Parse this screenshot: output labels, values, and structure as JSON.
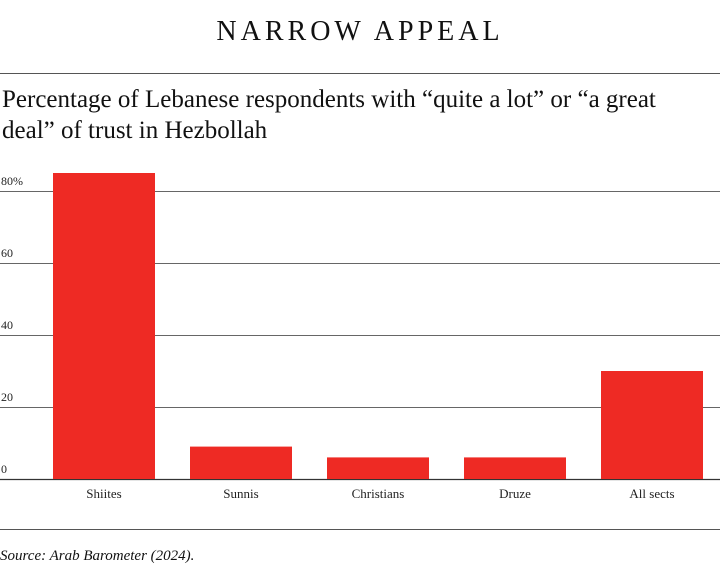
{
  "headline": "NARROW APPEAL",
  "subtitle": "Percentage of Lebanese respondents with “quite a lot” or “a great deal” of trust in Hezbollah",
  "source": "Source: Arab Barometer (2024).",
  "colors": {
    "bar": "#ee2a24",
    "grid": "#333333"
  },
  "chart_data": {
    "type": "bar",
    "title": "",
    "xlabel": "",
    "ylabel": "",
    "categories": [
      "Shiites",
      "Sunnis",
      "Christians",
      "Druze",
      "All sects"
    ],
    "values": [
      85,
      9,
      6,
      6,
      30
    ],
    "ylim": [
      0,
      80
    ],
    "yticks": [
      0,
      20,
      40,
      60,
      80
    ],
    "ytick_labels": [
      "0",
      "20",
      "40",
      "60",
      "80%"
    ],
    "grid": true,
    "legend": "none"
  }
}
